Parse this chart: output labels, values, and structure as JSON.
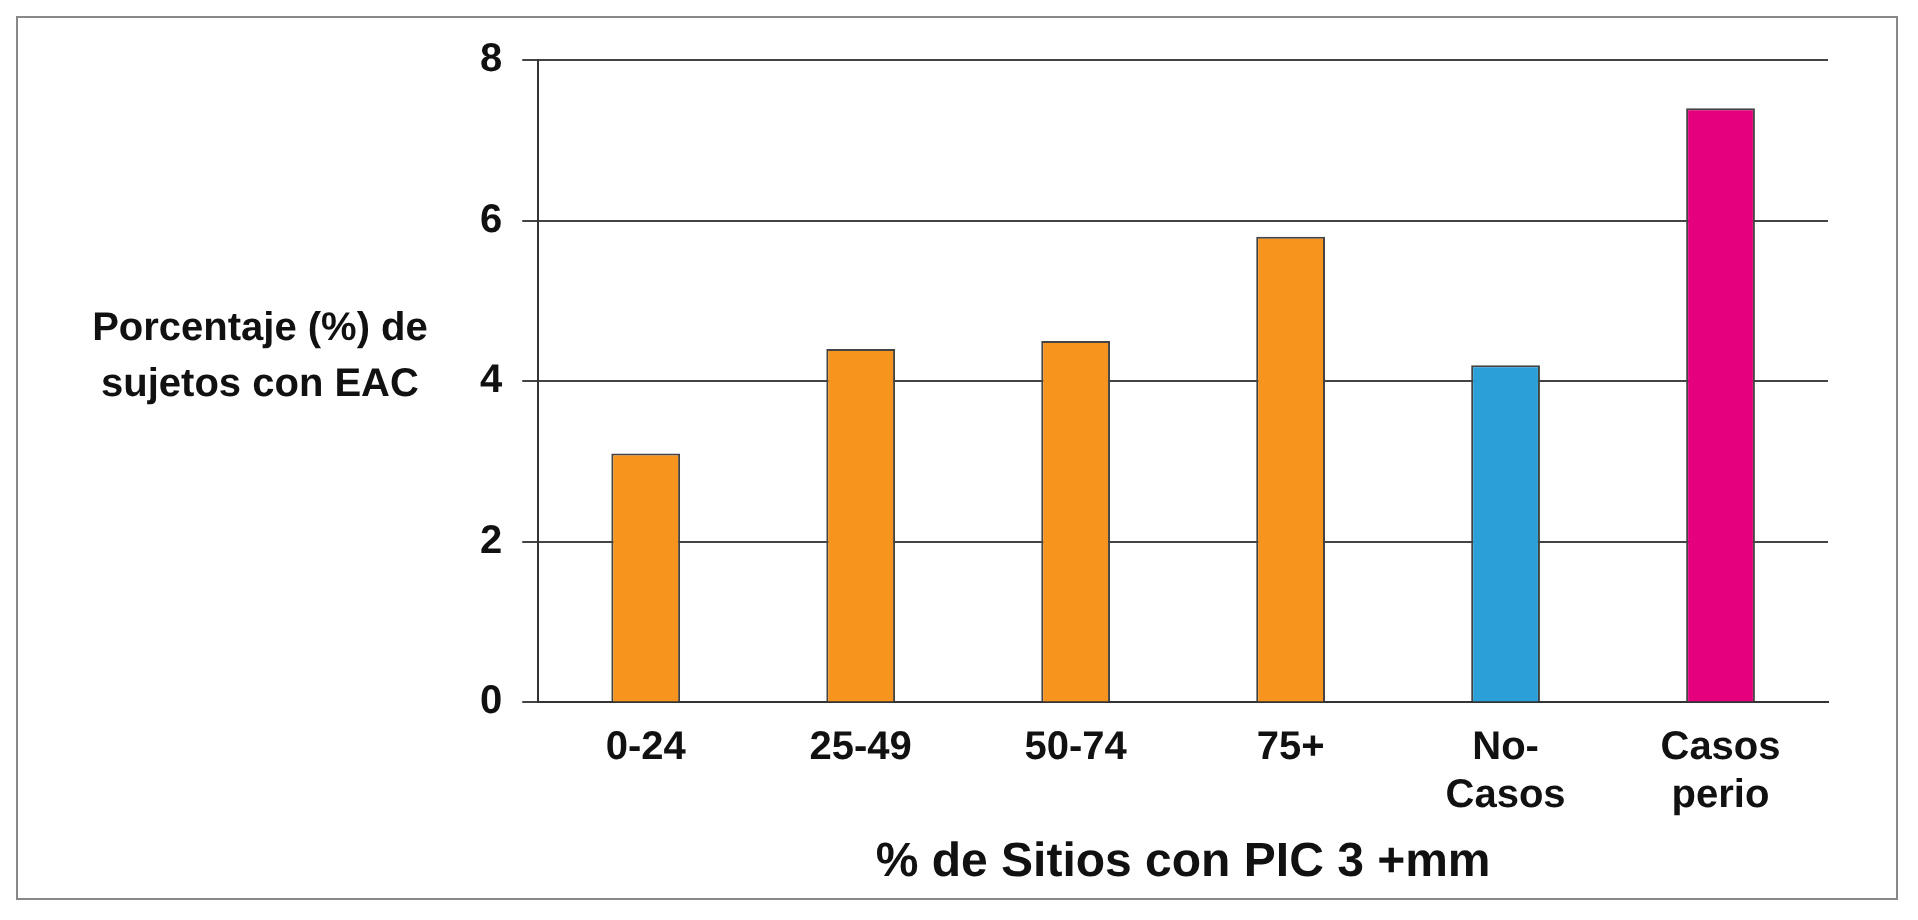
{
  "chart_data": {
    "type": "bar",
    "xlabel": "% de Sitios con PIC 3 +mm",
    "ylabel": "Porcentaje (%) de sujetos con EAC",
    "categories": [
      "0-24",
      "25-49",
      "50-74",
      "75+",
      "No-Casos",
      "Casos perio"
    ],
    "values": [
      3.1,
      4.4,
      4.5,
      5.8,
      4.2,
      7.4
    ],
    "colors": [
      "#f7941d",
      "#f7941d",
      "#f7941d",
      "#f7941d",
      "#2a9fd8",
      "#e5007e"
    ],
    "ylim": [
      0,
      8
    ],
    "yticks": [
      0,
      2,
      4,
      6,
      8
    ],
    "grid": "y",
    "legend": false
  }
}
